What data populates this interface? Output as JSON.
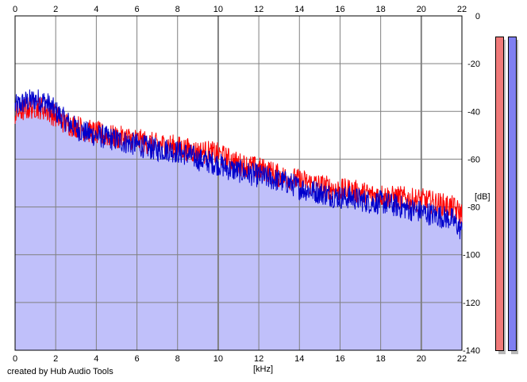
{
  "chart_data": {
    "type": "area",
    "title": "",
    "xlabel": "[kHz]",
    "ylabel": "[dB]",
    "xlim": [
      0,
      22
    ],
    "ylim": [
      -140,
      0
    ],
    "x_ticks": [
      0,
      2,
      4,
      6,
      8,
      10,
      12,
      14,
      16,
      18,
      20,
      22
    ],
    "y_ticks": [
      0,
      -20,
      -40,
      -60,
      -80,
      -100,
      -120,
      -140
    ],
    "y_tick_labels": [
      "0",
      "-20",
      "-40",
      "-60",
      "-80",
      "-100",
      "-120",
      "-140"
    ],
    "grid": true,
    "x": [
      0,
      0.5,
      1,
      1.5,
      2,
      2.5,
      3,
      3.5,
      4,
      4.5,
      5,
      5.5,
      6,
      6.5,
      7,
      7.5,
      8,
      8.5,
      9,
      9.5,
      10,
      10.5,
      11,
      11.5,
      12,
      12.5,
      13,
      13.5,
      14,
      14.5,
      15,
      15.5,
      16,
      16.5,
      17,
      17.5,
      18,
      18.5,
      19,
      19.5,
      20,
      20.5,
      21,
      21.5,
      22
    ],
    "series": [
      {
        "color": "#ff0000",
        "values": [
          -41,
          -39,
          -38,
          -39,
          -42,
          -45,
          -46,
          -48,
          -49,
          -50,
          -51,
          -51,
          -52,
          -53,
          -54,
          -54,
          -55,
          -56,
          -57,
          -57,
          -58,
          -60,
          -62,
          -63,
          -64,
          -65,
          -67,
          -68,
          -69,
          -70,
          -71,
          -72,
          -73,
          -73,
          -74,
          -75,
          -75,
          -76,
          -76,
          -77,
          -77,
          -78,
          -79,
          -80,
          -83
        ]
      },
      {
        "color": "#0000cc",
        "values": [
          -38,
          -36,
          -35,
          -36,
          -40,
          -44,
          -47,
          -49,
          -50,
          -51,
          -52,
          -53,
          -54,
          -55,
          -56,
          -56,
          -57,
          -58,
          -60,
          -61,
          -62,
          -64,
          -65,
          -66,
          -67,
          -68,
          -69,
          -70,
          -72,
          -73,
          -74,
          -75,
          -76,
          -76,
          -77,
          -78,
          -78,
          -79,
          -80,
          -81,
          -82,
          -83,
          -84,
          -85,
          -90
        ]
      }
    ],
    "fill_color": "#c0c0fa",
    "meters": [
      {
        "channel": "left",
        "color": "#f07a7a",
        "level": 1.0
      },
      {
        "channel": "right",
        "color": "#7f7ff2",
        "level": 1.0
      }
    ]
  },
  "footer": {
    "credit": "created by Hub Audio Tools"
  }
}
